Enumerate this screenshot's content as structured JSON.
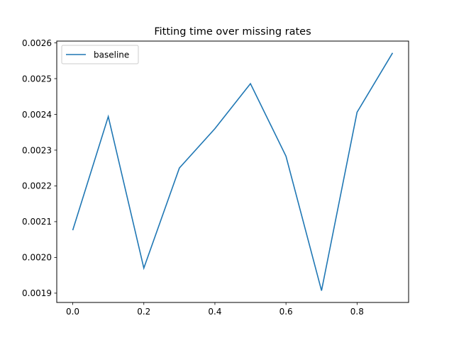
{
  "chart_data": {
    "type": "line",
    "title": "Fitting time over missing rates",
    "xlabel": "",
    "ylabel": "",
    "x": [
      0.0,
      0.1,
      0.2,
      0.3,
      0.4,
      0.5,
      0.6,
      0.7,
      0.8,
      0.9
    ],
    "series": [
      {
        "name": "baseline",
        "color": "#1f77b4",
        "values": [
          0.002076,
          0.002394,
          0.00197,
          0.00225,
          0.00236,
          0.002486,
          0.002283,
          0.001907,
          0.002406,
          0.002572
        ]
      }
    ],
    "xlim": [
      -0.045,
      0.945
    ],
    "ylim": [
      0.001874,
      0.002605
    ],
    "xticks": [
      0.0,
      0.2,
      0.4,
      0.6,
      0.8
    ],
    "xtick_labels": [
      "0.0",
      "0.2",
      "0.4",
      "0.6",
      "0.8"
    ],
    "yticks": [
      0.0019,
      0.002,
      0.0021,
      0.0022,
      0.0023,
      0.0024,
      0.0025,
      0.0026
    ],
    "ytick_labels": [
      "0.0019",
      "0.0020",
      "0.0021",
      "0.0022",
      "0.0023",
      "0.0024",
      "0.0025",
      "0.0026"
    ],
    "grid": false,
    "legend_position": "top-left"
  }
}
